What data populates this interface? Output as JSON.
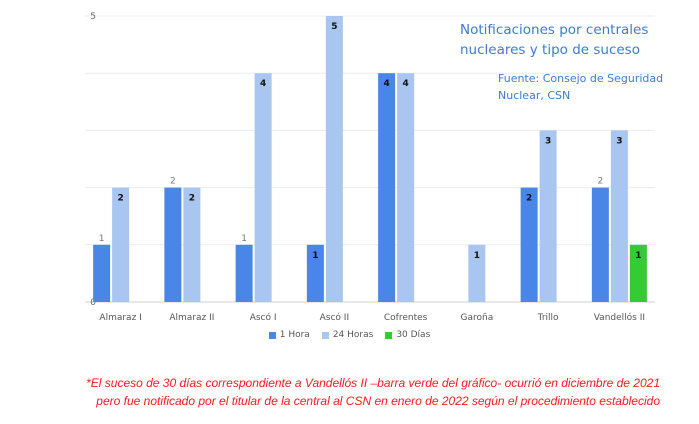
{
  "chart_data": {
    "type": "bar",
    "title": "Notificaciones por centrales nucleares y tipo de suceso",
    "source": "Fuente: Consejo de Seguridad Nuclear, CSN",
    "categories": [
      "Almaraz I",
      "Almaraz II",
      "Ascó I",
      "Ascó II",
      "Cofrentes",
      "Garoña",
      "Trillo",
      "Vandellós II"
    ],
    "series": [
      {
        "name": "1 Hora",
        "color": "#4a86e8",
        "values": [
          1,
          2,
          1,
          1,
          4,
          0,
          2,
          2
        ],
        "bold_labels": [
          false,
          false,
          false,
          true,
          true,
          false,
          true,
          false
        ]
      },
      {
        "name": "24 Horas",
        "color": "#a8c6f0",
        "values": [
          2,
          2,
          4,
          5,
          4,
          1,
          3,
          3
        ],
        "bold_labels": [
          true,
          true,
          true,
          true,
          true,
          true,
          true,
          true
        ]
      },
      {
        "name": "30 Días",
        "color": "#33cc33",
        "values": [
          0,
          0,
          0,
          0,
          0,
          0,
          0,
          1
        ],
        "bold_labels": [
          false,
          false,
          false,
          false,
          false,
          false,
          false,
          true
        ]
      }
    ],
    "yticks": [
      "0",
      "5"
    ],
    "ylim": [
      0,
      5
    ],
    "grid": true,
    "legend": "bottom"
  },
  "footnote": {
    "line1": "*El suceso de 30 días correspondiente a Vandellós II –barra verde del gráfico- ocurrió en diciembre de 2021",
    "line2": "pero fue notificado por el titular de la central al CSN en enero de 2022 según el procedimiento establecido"
  }
}
